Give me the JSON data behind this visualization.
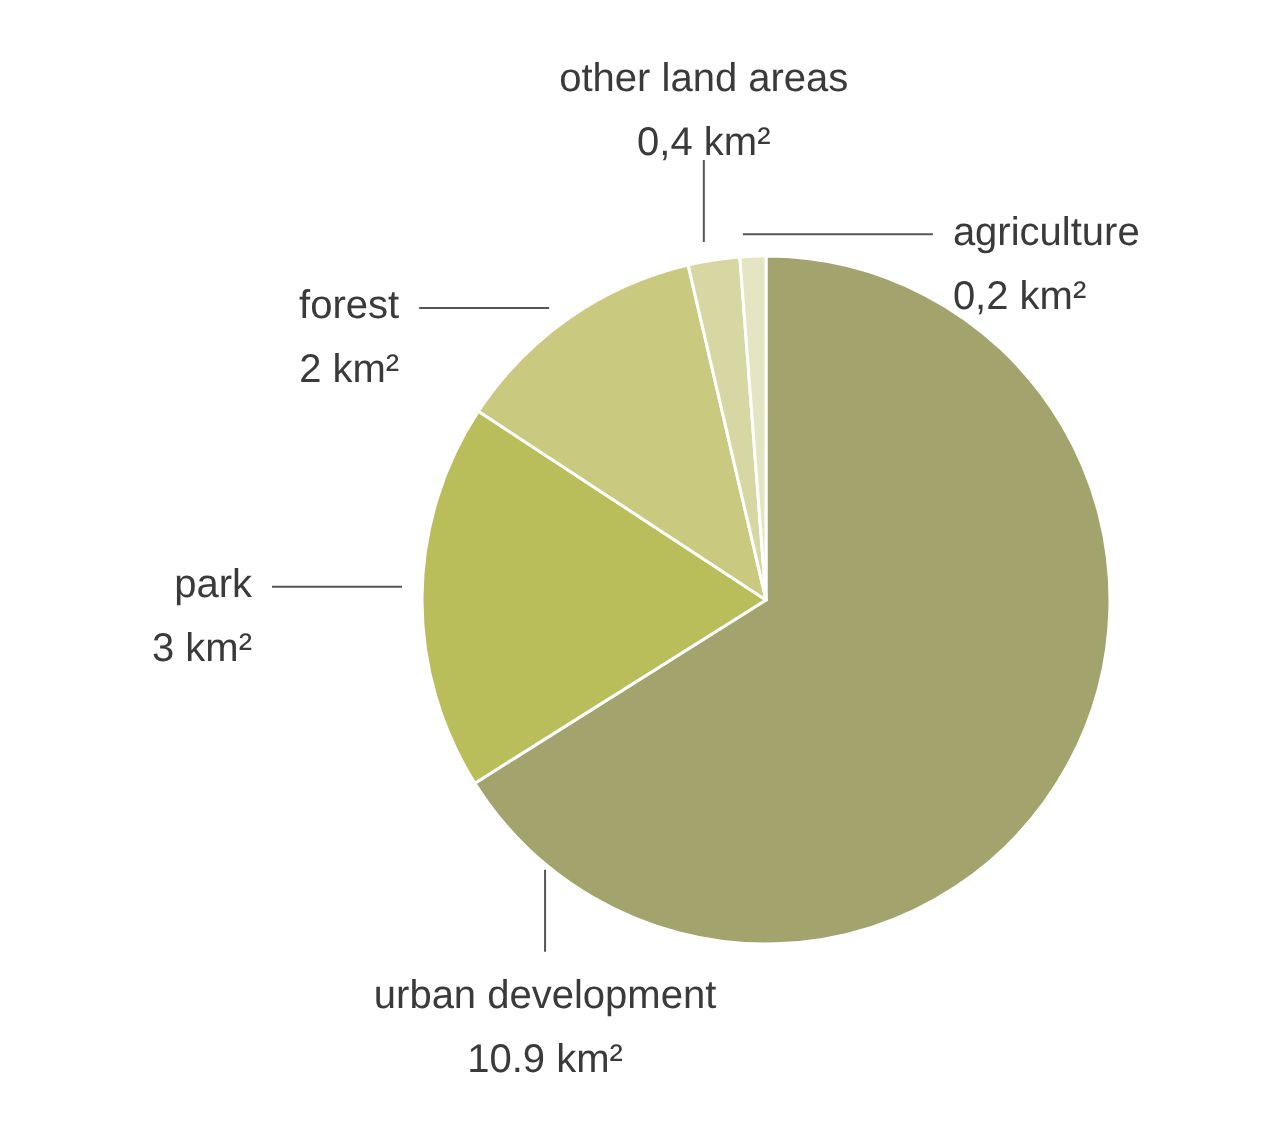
{
  "chart_data": {
    "type": "pie",
    "categories": [
      "urban development",
      "park",
      "forest",
      "other land areas",
      "agriculture"
    ],
    "values": [
      10.9,
      3,
      2,
      0.4,
      0.2
    ],
    "value_labels": [
      "10.9 km²",
      "3 km²",
      "2 km²",
      "0,4 km²",
      "0,2 km²"
    ],
    "colors": [
      "#a3a46d",
      "#b9bd5a",
      "#c9c97f",
      "#d7d7a4",
      "#e6e5c3"
    ],
    "legend": false
  }
}
